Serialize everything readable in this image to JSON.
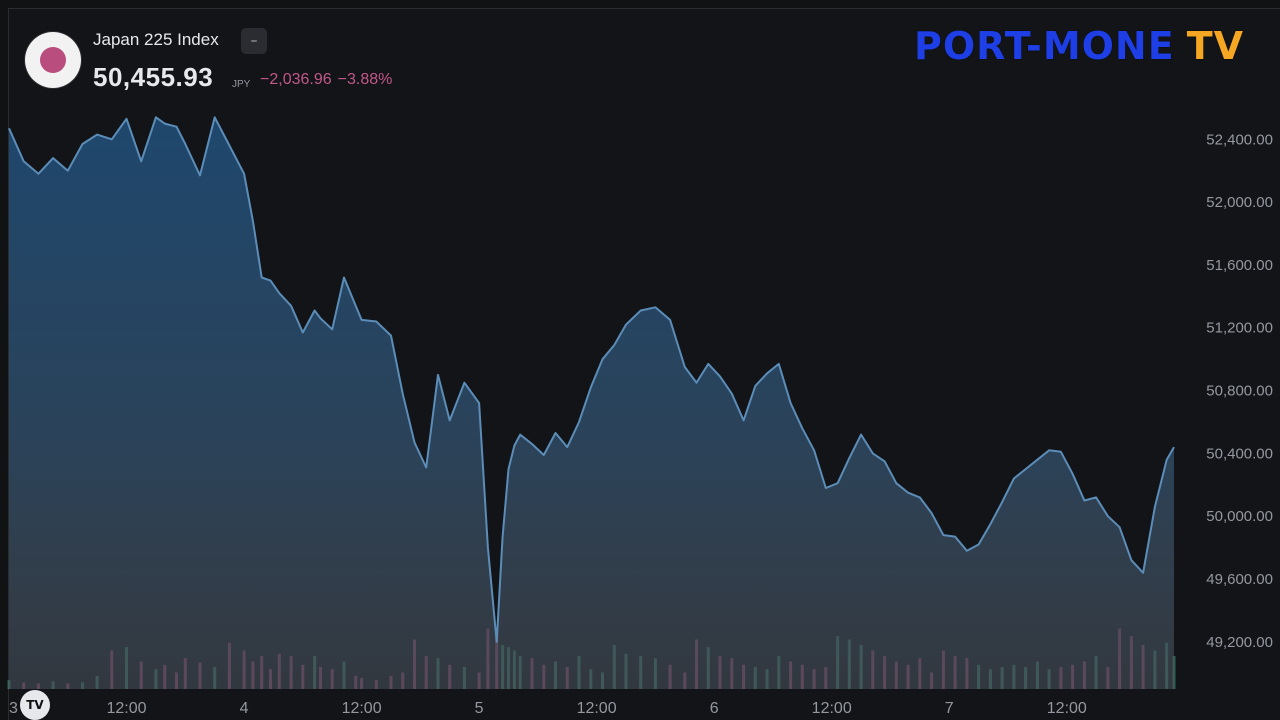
{
  "symbol": {
    "name": "Japan 225 Index",
    "menu_glyph": "–",
    "price": "50,455.93",
    "currency": "JPY",
    "change": "−2,036.96",
    "change_pct": "−3.88%",
    "flag_icon": "japan-flag-icon"
  },
  "logo": {
    "main": "PORT-MONE",
    "suffix": "TV"
  },
  "badge": {
    "label": "TV"
  },
  "colors": {
    "line": "#5b8db8",
    "down": "#c2578b",
    "up": "#4a9a7a",
    "logo_blue": "#1e3ee6",
    "logo_orange": "#f5a623"
  },
  "chart_data": {
    "type": "area",
    "ylim": [
      48900,
      52650
    ],
    "y_ticks": [
      {
        "value": 52400,
        "label": "52,400.00"
      },
      {
        "value": 52000,
        "label": "52,000.00"
      },
      {
        "value": 51600,
        "label": "51,600.00"
      },
      {
        "value": 51200,
        "label": "51,200.00"
      },
      {
        "value": 50800,
        "label": "50,800.00"
      },
      {
        "value": 50400,
        "label": "50,400.00"
      },
      {
        "value": 50000,
        "label": "50,000.00"
      },
      {
        "value": 49600,
        "label": "49,600.00"
      },
      {
        "value": 49200,
        "label": "49,200.00"
      }
    ],
    "x_ticks": [
      {
        "t": 0.0,
        "label": "3"
      },
      {
        "t": 4.0,
        "label": "12:00"
      },
      {
        "t": 8.0,
        "label": "4"
      },
      {
        "t": 12.0,
        "label": "12:00"
      },
      {
        "t": 16.0,
        "label": "5"
      },
      {
        "t": 20.0,
        "label": "12:00"
      },
      {
        "t": 24.0,
        "label": "6"
      },
      {
        "t": 28.0,
        "label": "12:00"
      },
      {
        "t": 32.0,
        "label": "7"
      },
      {
        "t": 36.0,
        "label": "12:00"
      }
    ],
    "xlim": [
      0.0,
      39.65
    ],
    "x": [
      0.0,
      0.5,
      1.0,
      1.5,
      2.0,
      2.5,
      3.0,
      3.5,
      4.0,
      4.5,
      5.0,
      5.3,
      5.7,
      6.0,
      6.5,
      7.0,
      7.5,
      8.0,
      8.3,
      8.6,
      8.9,
      9.2,
      9.6,
      10.0,
      10.4,
      10.6,
      11.0,
      11.4,
      11.8,
      12.0,
      12.5,
      13.0,
      13.4,
      13.8,
      14.2,
      14.6,
      15.0,
      15.5,
      16.0,
      16.3,
      16.6,
      16.8,
      17.0,
      17.2,
      17.4,
      17.8,
      18.2,
      18.6,
      19.0,
      19.4,
      19.8,
      20.2,
      20.6,
      21.0,
      21.5,
      22.0,
      22.5,
      23.0,
      23.4,
      23.8,
      24.2,
      24.6,
      25.0,
      25.4,
      25.8,
      26.2,
      26.6,
      27.0,
      27.4,
      27.8,
      28.2,
      28.6,
      29.0,
      29.4,
      29.8,
      30.2,
      30.6,
      31.0,
      31.4,
      31.8,
      32.2,
      32.6,
      33.0,
      33.4,
      33.8,
      34.2,
      34.6,
      35.0,
      35.4,
      35.8,
      36.2,
      36.6,
      37.0,
      37.4,
      37.8,
      38.2,
      38.6,
      39.0,
      39.4,
      39.65
    ],
    "y": [
      52470,
      52260,
      52180,
      52280,
      52200,
      52370,
      52430,
      52400,
      52530,
      52260,
      52540,
      52500,
      52480,
      52370,
      52170,
      52540,
      52360,
      52180,
      51880,
      51520,
      51500,
      51420,
      51340,
      51170,
      51310,
      51260,
      51190,
      51520,
      51340,
      51250,
      51240,
      51150,
      50780,
      50470,
      50310,
      50900,
      50610,
      50850,
      50720,
      49800,
      49200,
      49870,
      50300,
      50450,
      50520,
      50460,
      50390,
      50530,
      50440,
      50600,
      50820,
      51000,
      51090,
      51220,
      51310,
      51330,
      51250,
      50950,
      50850,
      50970,
      50890,
      50780,
      50610,
      50830,
      50910,
      50970,
      50720,
      50560,
      50420,
      50180,
      50210,
      50370,
      50520,
      50400,
      50350,
      50210,
      50150,
      50120,
      50020,
      49880,
      49870,
      49780,
      49820,
      49950,
      50090,
      50240,
      50300,
      50360,
      50420,
      50410,
      50270,
      50100,
      50120,
      50000,
      49930,
      49720,
      49640,
      50060,
      50360,
      50440
    ],
    "volume": [
      0.08,
      0.06,
      0.05,
      0.07,
      0.05,
      0.06,
      0.12,
      0.35,
      0.38,
      0.25,
      0.18,
      0.22,
      0.15,
      0.28,
      0.24,
      0.2,
      0.42,
      0.35,
      0.25,
      0.3,
      0.18,
      0.32,
      0.3,
      0.22,
      0.3,
      0.2,
      0.18,
      0.25,
      0.12,
      0.1,
      0.08,
      0.12,
      0.15,
      0.45,
      0.3,
      0.28,
      0.22,
      0.2,
      0.15,
      0.55,
      0.5,
      0.4,
      0.38,
      0.35,
      0.3,
      0.28,
      0.22,
      0.25,
      0.2,
      0.3,
      0.18,
      0.15,
      0.4,
      0.32,
      0.3,
      0.28,
      0.22,
      0.15,
      0.45,
      0.38,
      0.3,
      0.28,
      0.22,
      0.2,
      0.18,
      0.3,
      0.25,
      0.22,
      0.18,
      0.2,
      0.48,
      0.45,
      0.4,
      0.35,
      0.3,
      0.25,
      0.22,
      0.28,
      0.15,
      0.35,
      0.3,
      0.28,
      0.22,
      0.18,
      0.2,
      0.22,
      0.2,
      0.25,
      0.18,
      0.2,
      0.22,
      0.25,
      0.3,
      0.2,
      0.55,
      0.48,
      0.4,
      0.35,
      0.42,
      0.3
    ]
  }
}
